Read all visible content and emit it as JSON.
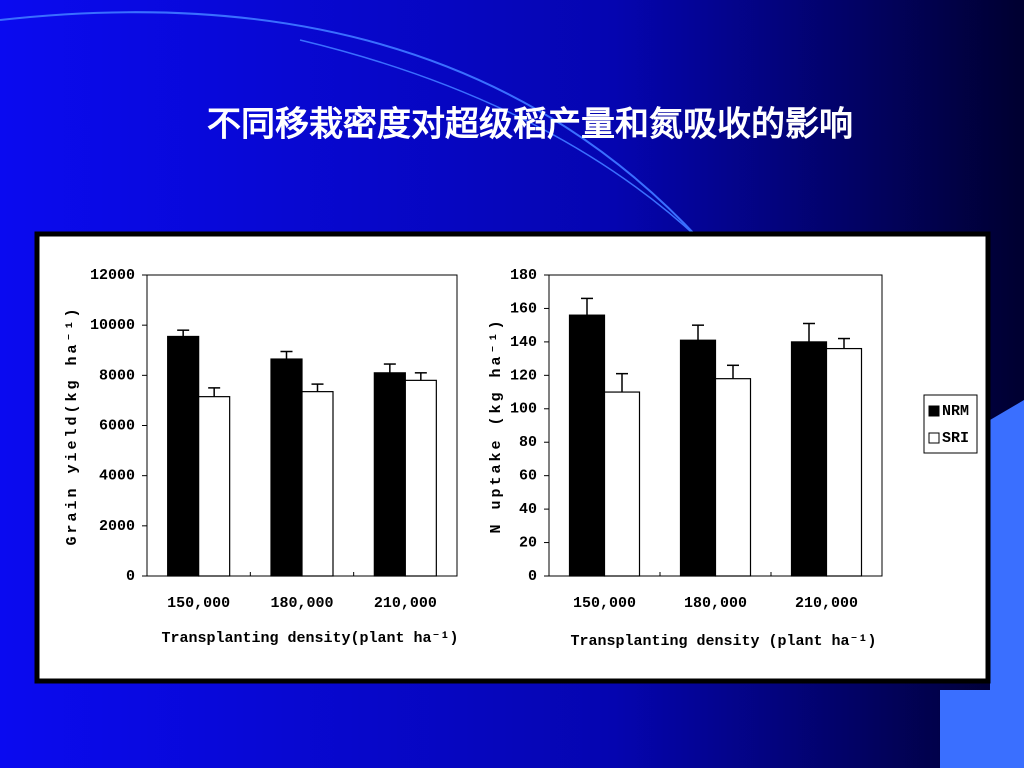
{
  "slide_title": "不同移栽密度对超级稻产量和氮吸收的影响",
  "chart_data": [
    {
      "type": "bar",
      "categories": [
        "150,000",
        "180,000",
        "210,000"
      ],
      "series": [
        {
          "color": "#000000",
          "values": [
            9550,
            8650,
            8100
          ],
          "errors": [
            250,
            300,
            350
          ]
        },
        {
          "color": "#ffffff",
          "values": [
            7150,
            7350,
            7800
          ],
          "errors": [
            350,
            300,
            300
          ]
        }
      ],
      "ylim": [
        0,
        12000
      ],
      "yticks": [
        0,
        2000,
        4000,
        6000,
        8000,
        10000,
        12000
      ],
      "y_label": "Grain yield(kg ha⁻¹)",
      "x_label": "Transplanting density(plant ha⁻¹)"
    },
    {
      "type": "bar",
      "categories": [
        "150,000",
        "180,000",
        "210,000"
      ],
      "series": [
        {
          "name": "NRM",
          "color": "#000000",
          "values": [
            156,
            141,
            140
          ],
          "errors": [
            10,
            9,
            11
          ]
        },
        {
          "name": "SRI",
          "color": "#ffffff",
          "values": [
            110,
            118,
            136
          ],
          "errors": [
            11,
            8,
            6
          ]
        }
      ],
      "ylim": [
        0,
        180
      ],
      "yticks": [
        0,
        20,
        40,
        60,
        80,
        100,
        120,
        140,
        160,
        180
      ],
      "y_label": "N uptake (kg ha⁻¹)",
      "x_label": "Transplanting density (plant ha⁻¹)"
    }
  ]
}
